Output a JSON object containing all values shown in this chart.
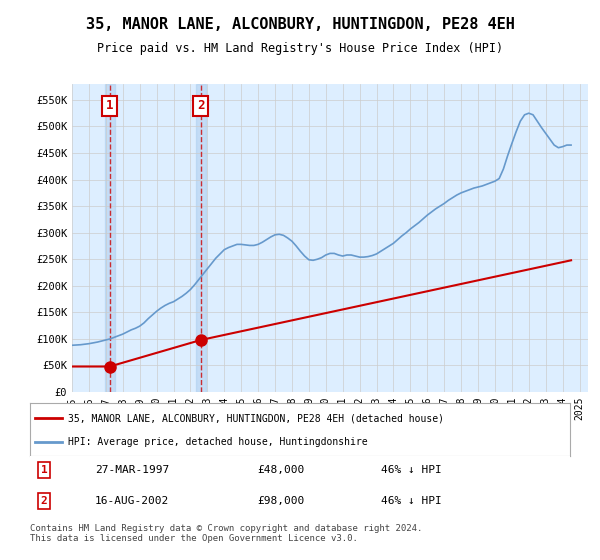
{
  "title": "35, MANOR LANE, ALCONBURY, HUNTINGDON, PE28 4EH",
  "subtitle": "Price paid vs. HM Land Registry's House Price Index (HPI)",
  "ylabel": "",
  "xlim_start": 1995.0,
  "xlim_end": 2025.5,
  "ylim_min": 0,
  "ylim_max": 580000,
  "yticks": [
    0,
    50000,
    100000,
    150000,
    200000,
    250000,
    300000,
    350000,
    400000,
    450000,
    500000,
    550000
  ],
  "ytick_labels": [
    "£0",
    "£50K",
    "£100K",
    "£150K",
    "£200K",
    "£250K",
    "£300K",
    "£350K",
    "£400K",
    "£450K",
    "£500K",
    "£550K"
  ],
  "xticks": [
    1995,
    1996,
    1997,
    1998,
    1999,
    2000,
    2001,
    2002,
    2003,
    2004,
    2005,
    2006,
    2007,
    2008,
    2009,
    2010,
    2011,
    2012,
    2013,
    2014,
    2015,
    2016,
    2017,
    2018,
    2019,
    2020,
    2021,
    2022,
    2023,
    2024,
    2025
  ],
  "sale1_x": 1997.23,
  "sale1_y": 48000,
  "sale1_label": "1",
  "sale1_date": "27-MAR-1997",
  "sale1_price": "£48,000",
  "sale1_hpi": "46% ↓ HPI",
  "sale2_x": 2002.62,
  "sale2_y": 98000,
  "sale2_label": "2",
  "sale2_date": "16-AUG-2002",
  "sale2_price": "£98,000",
  "sale2_hpi": "46% ↓ HPI",
  "property_color": "#cc0000",
  "hpi_color": "#6699cc",
  "hpi_color_light": "#aaccee",
  "background_color": "#ddeeff",
  "grid_color": "#cccccc",
  "legend1_label": "35, MANOR LANE, ALCONBURY, HUNTINGDON, PE28 4EH (detached house)",
  "legend2_label": "HPI: Average price, detached house, Huntingdonshire",
  "footer": "Contains HM Land Registry data © Crown copyright and database right 2024.\nThis data is licensed under the Open Government Licence v3.0.",
  "hpi_data_x": [
    1995.0,
    1995.25,
    1995.5,
    1995.75,
    1996.0,
    1996.25,
    1996.5,
    1996.75,
    1997.0,
    1997.25,
    1997.5,
    1997.75,
    1998.0,
    1998.25,
    1998.5,
    1998.75,
    1999.0,
    1999.25,
    1999.5,
    1999.75,
    2000.0,
    2000.25,
    2000.5,
    2000.75,
    2001.0,
    2001.25,
    2001.5,
    2001.75,
    2002.0,
    2002.25,
    2002.5,
    2002.75,
    2003.0,
    2003.25,
    2003.5,
    2003.75,
    2004.0,
    2004.25,
    2004.5,
    2004.75,
    2005.0,
    2005.25,
    2005.5,
    2005.75,
    2006.0,
    2006.25,
    2006.5,
    2006.75,
    2007.0,
    2007.25,
    2007.5,
    2007.75,
    2008.0,
    2008.25,
    2008.5,
    2008.75,
    2009.0,
    2009.25,
    2009.5,
    2009.75,
    2010.0,
    2010.25,
    2010.5,
    2010.75,
    2011.0,
    2011.25,
    2011.5,
    2011.75,
    2012.0,
    2012.25,
    2012.5,
    2012.75,
    2013.0,
    2013.25,
    2013.5,
    2013.75,
    2014.0,
    2014.25,
    2014.5,
    2014.75,
    2015.0,
    2015.25,
    2015.5,
    2015.75,
    2016.0,
    2016.25,
    2016.5,
    2016.75,
    2017.0,
    2017.25,
    2017.5,
    2017.75,
    2018.0,
    2018.25,
    2018.5,
    2018.75,
    2019.0,
    2019.25,
    2019.5,
    2019.75,
    2020.0,
    2020.25,
    2020.5,
    2020.75,
    2021.0,
    2021.25,
    2021.5,
    2021.75,
    2022.0,
    2022.25,
    2022.5,
    2022.75,
    2023.0,
    2023.25,
    2023.5,
    2023.75,
    2024.0,
    2024.25,
    2024.5
  ],
  "hpi_data_y": [
    88000,
    88500,
    89000,
    90000,
    91000,
    92500,
    94000,
    96000,
    98000,
    100000,
    103000,
    106000,
    109000,
    113000,
    117000,
    120000,
    124000,
    130000,
    138000,
    145000,
    152000,
    158000,
    163000,
    167000,
    170000,
    175000,
    180000,
    186000,
    193000,
    202000,
    212000,
    222000,
    232000,
    242000,
    252000,
    260000,
    268000,
    272000,
    275000,
    278000,
    278000,
    277000,
    276000,
    276000,
    278000,
    282000,
    287000,
    292000,
    296000,
    297000,
    295000,
    290000,
    284000,
    275000,
    265000,
    256000,
    249000,
    248000,
    250000,
    253000,
    258000,
    261000,
    261000,
    258000,
    256000,
    258000,
    258000,
    256000,
    254000,
    254000,
    255000,
    257000,
    260000,
    265000,
    270000,
    275000,
    280000,
    287000,
    294000,
    300000,
    307000,
    313000,
    319000,
    326000,
    333000,
    339000,
    345000,
    350000,
    355000,
    361000,
    366000,
    371000,
    375000,
    378000,
    381000,
    384000,
    386000,
    388000,
    391000,
    394000,
    397000,
    402000,
    420000,
    445000,
    468000,
    490000,
    510000,
    522000,
    525000,
    522000,
    510000,
    498000,
    487000,
    476000,
    465000,
    460000,
    462000,
    465000,
    465000
  ],
  "property_data_x": [
    1995.0,
    1997.23,
    2002.62,
    2024.5
  ],
  "property_data_y": [
    48000,
    48000,
    98000,
    248000
  ]
}
